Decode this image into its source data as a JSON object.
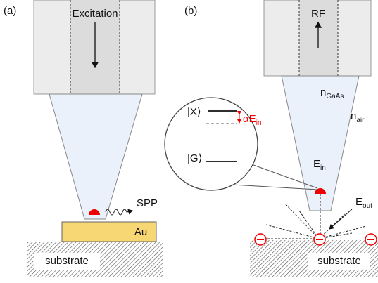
{
  "panel_a": {
    "label": "(a)",
    "excitation": "Excitation",
    "spp": "SPP",
    "metal": "Au",
    "substrate": "substrate"
  },
  "panel_b": {
    "label": "(b)",
    "rf": "RF",
    "n_gaas": {
      "main": "n",
      "sub": "GaAs"
    },
    "n_air": {
      "main": "n",
      "sub": "air"
    },
    "state_x": "|X⟩",
    "state_g": "|G⟩",
    "shift": {
      "main": "αE",
      "sub": "in"
    },
    "e_in": {
      "main": "E",
      "sub": "in"
    },
    "e_out": {
      "main": "E",
      "sub": "out"
    },
    "substrate": "substrate"
  }
}
